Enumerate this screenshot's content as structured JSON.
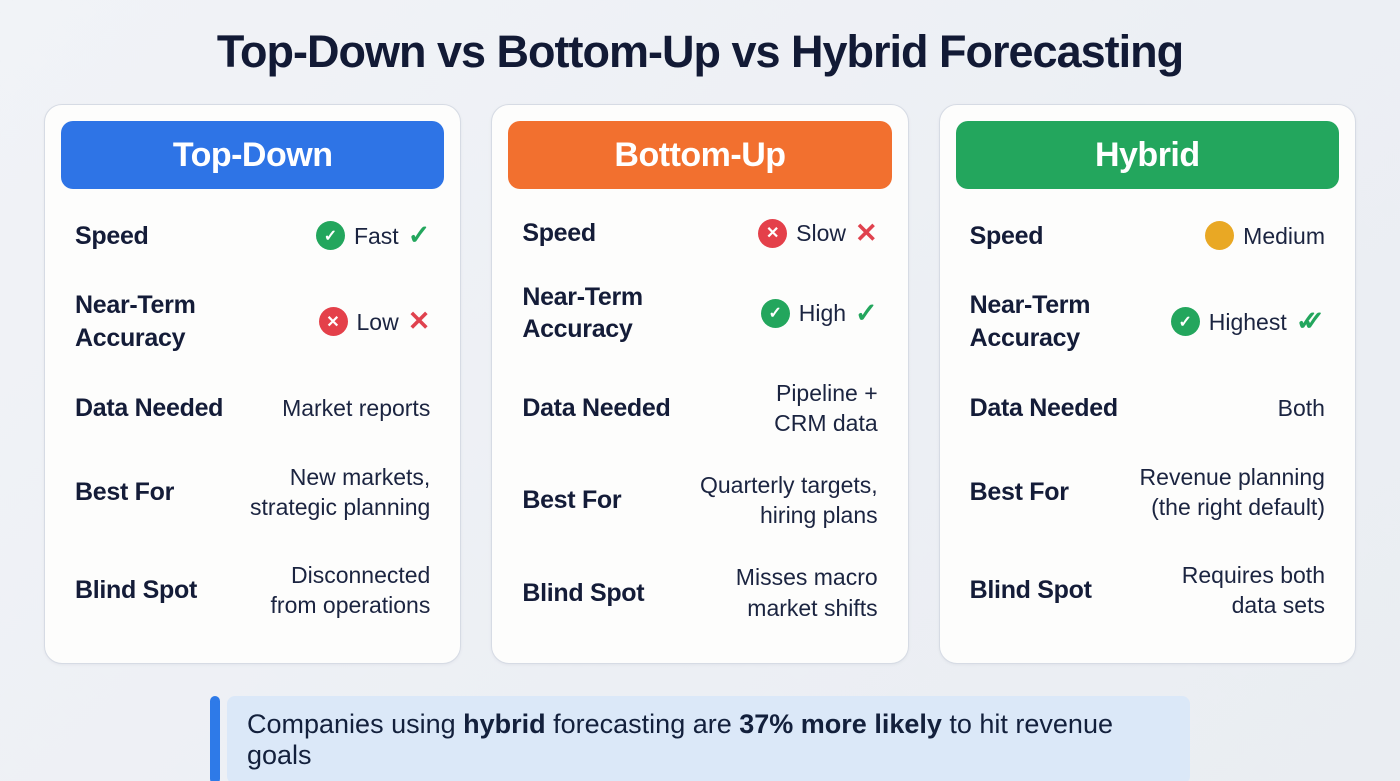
{
  "title": "Top-Down vs Bottom-Up vs Hybrid Forecasting",
  "icons": {
    "check": "✓",
    "x": "✕"
  },
  "colors": {
    "top_down": "#2E74E6",
    "bottom_up": "#F2702F",
    "hybrid": "#23A65D",
    "positive": "#23A65D",
    "negative": "#E4404A",
    "neutral": "#E9A824",
    "callout_bg": "#DBE8F8",
    "callout_bar": "#2E7AE8"
  },
  "columns": [
    {
      "header": "Top-Down",
      "color": "#2E74E6",
      "rows": [
        {
          "label": "Speed",
          "value": "Fast",
          "lead_icon": "check-circle",
          "trail_icon": "check"
        },
        {
          "label": "Near-Term\nAccuracy",
          "value": "Low",
          "lead_icon": "x-circle",
          "trail_icon": "x"
        },
        {
          "label": "Data Needed",
          "value": "Market reports"
        },
        {
          "label": "Best For",
          "value": "New markets,\nstrategic planning"
        },
        {
          "label": "Blind Spot",
          "value": "Disconnected\nfrom operations"
        }
      ]
    },
    {
      "header": "Bottom-Up",
      "color": "#F2702F",
      "rows": [
        {
          "label": "Speed",
          "value": "Slow",
          "lead_icon": "x-circle",
          "trail_icon": "x"
        },
        {
          "label": "Near-Term\nAccuracy",
          "value": "High",
          "lead_icon": "check-circle",
          "trail_icon": "check"
        },
        {
          "label": "Data Needed",
          "value": "Pipeline +\nCRM data"
        },
        {
          "label": "Best For",
          "value": "Quarterly targets,\nhiring plans"
        },
        {
          "label": "Blind Spot",
          "value": "Misses macro\nmarket shifts"
        }
      ]
    },
    {
      "header": "Hybrid",
      "color": "#23A65D",
      "rows": [
        {
          "label": "Speed",
          "value": "Medium",
          "lead_icon": "amber-dot"
        },
        {
          "label": "Near-Term\nAccuracy",
          "value": "Highest",
          "lead_icon": "check-circle",
          "trail_icon": "double-check"
        },
        {
          "label": "Data Needed",
          "value": "Both"
        },
        {
          "label": "Best For",
          "value": "Revenue planning\n(the right default)"
        },
        {
          "label": "Blind Spot",
          "value": "Requires both\ndata sets"
        }
      ]
    }
  ],
  "callout": {
    "part1": "Companies using ",
    "part2": "hybrid",
    "part3": " forecasting are ",
    "part4": "37% more likely",
    "part5": " to hit revenue goals"
  },
  "chart_data": {
    "type": "table",
    "title": "Top-Down vs Bottom-Up vs Hybrid Forecasting",
    "columns": [
      "Top-Down",
      "Bottom-Up",
      "Hybrid"
    ],
    "row_headers": [
      "Speed",
      "Near-Term Accuracy",
      "Data Needed",
      "Best For",
      "Blind Spot"
    ],
    "cells": [
      [
        "Fast",
        "Slow",
        "Medium"
      ],
      [
        "Low",
        "High",
        "Highest"
      ],
      [
        "Market reports",
        "Pipeline + CRM data",
        "Both"
      ],
      [
        "New markets, strategic planning",
        "Quarterly targets, hiring plans",
        "Revenue planning (the right default)"
      ],
      [
        "Disconnected from operations",
        "Misses macro market shifts",
        "Requires both data sets"
      ]
    ],
    "annotation": "Companies using hybrid forecasting are 37% more likely to hit revenue goals"
  }
}
